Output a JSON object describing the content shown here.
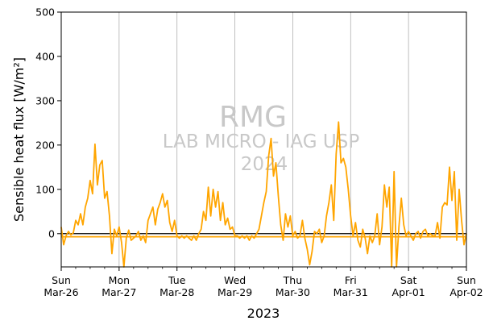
{
  "chart_data": {
    "type": "line",
    "title": "",
    "ylabel": "Sensible heat flux [W/m²]",
    "xlabel": "2023",
    "ylim": [
      -75,
      500
    ],
    "xlim": [
      "2023-03-26",
      "2023-04-02"
    ],
    "yticks": [
      0,
      100,
      200,
      300,
      400,
      500
    ],
    "xticks": [
      {
        "day": "Sun",
        "date": "Mar-26"
      },
      {
        "day": "Mon",
        "date": "Mar-27"
      },
      {
        "day": "Tue",
        "date": "Mar-28"
      },
      {
        "day": "Wed",
        "date": "Mar-29"
      },
      {
        "day": "Thu",
        "date": "Mar-30"
      },
      {
        "day": "Fri",
        "date": "Mar-31"
      },
      {
        "day": "Sat",
        "date": "Apr-01"
      },
      {
        "day": "Sun",
        "date": "Apr-02"
      }
    ],
    "grid": "vertical at day ticks",
    "reference_line": 0,
    "mean_line": -7,
    "series": [
      {
        "color": "#ffa500",
        "points": [
          [
            "2023-03-26 00:00",
            15
          ],
          [
            "2023-03-26 01:00",
            -25
          ],
          [
            "2023-03-26 02:00",
            -5
          ],
          [
            "2023-03-26 03:00",
            5
          ],
          [
            "2023-03-26 04:00",
            -3
          ],
          [
            "2023-03-26 05:00",
            2
          ],
          [
            "2023-03-26 06:00",
            30
          ],
          [
            "2023-03-26 07:00",
            20
          ],
          [
            "2023-03-26 08:00",
            45
          ],
          [
            "2023-03-26 09:00",
            20
          ],
          [
            "2023-03-26 10:00",
            60
          ],
          [
            "2023-03-26 11:00",
            80
          ],
          [
            "2023-03-26 12:00",
            120
          ],
          [
            "2023-03-26 13:00",
            90
          ],
          [
            "2023-03-26 14:00",
            202
          ],
          [
            "2023-03-26 15:00",
            110
          ],
          [
            "2023-03-26 16:00",
            155
          ],
          [
            "2023-03-26 17:00",
            165
          ],
          [
            "2023-03-26 18:00",
            80
          ],
          [
            "2023-03-26 19:00",
            95
          ],
          [
            "2023-03-26 20:00",
            40
          ],
          [
            "2023-03-26 21:00",
            -45
          ],
          [
            "2023-03-26 22:00",
            10
          ],
          [
            "2023-03-26 23:00",
            -5
          ],
          [
            "2023-03-27 00:00",
            15
          ],
          [
            "2023-03-27 01:00",
            -20
          ],
          [
            "2023-03-27 02:00",
            -75
          ],
          [
            "2023-03-27 03:00",
            -10
          ],
          [
            "2023-03-27 04:00",
            8
          ],
          [
            "2023-03-27 05:00",
            -15
          ],
          [
            "2023-03-27 06:00",
            -10
          ],
          [
            "2023-03-27 07:00",
            -5
          ],
          [
            "2023-03-27 08:00",
            5
          ],
          [
            "2023-03-27 09:00",
            -15
          ],
          [
            "2023-03-27 10:00",
            -5
          ],
          [
            "2023-03-27 11:00",
            -20
          ],
          [
            "2023-03-27 12:00",
            30
          ],
          [
            "2023-03-27 13:00",
            45
          ],
          [
            "2023-03-27 14:00",
            60
          ],
          [
            "2023-03-27 15:00",
            20
          ],
          [
            "2023-03-27 16:00",
            55
          ],
          [
            "2023-03-27 17:00",
            70
          ],
          [
            "2023-03-27 18:00",
            90
          ],
          [
            "2023-03-27 19:00",
            60
          ],
          [
            "2023-03-27 20:00",
            75
          ],
          [
            "2023-03-27 21:00",
            25
          ],
          [
            "2023-03-27 22:00",
            5
          ],
          [
            "2023-03-27 23:00",
            30
          ],
          [
            "2023-03-28 00:00",
            -5
          ],
          [
            "2023-03-28 01:00",
            -10
          ],
          [
            "2023-03-28 02:00",
            -5
          ],
          [
            "2023-03-28 03:00",
            -10
          ],
          [
            "2023-03-28 04:00",
            -5
          ],
          [
            "2023-03-28 05:00",
            -10
          ],
          [
            "2023-03-28 06:00",
            -15
          ],
          [
            "2023-03-28 07:00",
            -5
          ],
          [
            "2023-03-28 08:00",
            -15
          ],
          [
            "2023-03-28 09:00",
            0
          ],
          [
            "2023-03-28 10:00",
            10
          ],
          [
            "2023-03-28 11:00",
            50
          ],
          [
            "2023-03-28 12:00",
            30
          ],
          [
            "2023-03-28 13:00",
            105
          ],
          [
            "2023-03-28 14:00",
            40
          ],
          [
            "2023-03-28 15:00",
            100
          ],
          [
            "2023-03-28 16:00",
            60
          ],
          [
            "2023-03-28 17:00",
            95
          ],
          [
            "2023-03-28 18:00",
            30
          ],
          [
            "2023-03-28 19:00",
            70
          ],
          [
            "2023-03-28 20:00",
            20
          ],
          [
            "2023-03-28 21:00",
            35
          ],
          [
            "2023-03-28 22:00",
            10
          ],
          [
            "2023-03-28 23:00",
            15
          ],
          [
            "2023-03-29 00:00",
            -5
          ],
          [
            "2023-03-29 01:00",
            -5
          ],
          [
            "2023-03-29 02:00",
            -10
          ],
          [
            "2023-03-29 03:00",
            -5
          ],
          [
            "2023-03-29 04:00",
            -10
          ],
          [
            "2023-03-29 05:00",
            -5
          ],
          [
            "2023-03-29 06:00",
            -15
          ],
          [
            "2023-03-29 07:00",
            -5
          ],
          [
            "2023-03-29 08:00",
            -10
          ],
          [
            "2023-03-29 09:00",
            0
          ],
          [
            "2023-03-29 10:00",
            10
          ],
          [
            "2023-03-29 11:00",
            40
          ],
          [
            "2023-03-29 12:00",
            70
          ],
          [
            "2023-03-29 13:00",
            95
          ],
          [
            "2023-03-29 14:00",
            175
          ],
          [
            "2023-03-29 15:00",
            215
          ],
          [
            "2023-03-29 16:00",
            130
          ],
          [
            "2023-03-29 17:00",
            160
          ],
          [
            "2023-03-29 18:00",
            85
          ],
          [
            "2023-03-29 19:00",
            20
          ],
          [
            "2023-03-29 20:00",
            -15
          ],
          [
            "2023-03-29 21:00",
            45
          ],
          [
            "2023-03-29 22:00",
            15
          ],
          [
            "2023-03-29 23:00",
            40
          ],
          [
            "2023-03-30 00:00",
            -5
          ],
          [
            "2023-03-30 01:00",
            5
          ],
          [
            "2023-03-30 02:00",
            -10
          ],
          [
            "2023-03-30 03:00",
            -5
          ],
          [
            "2023-03-30 04:00",
            30
          ],
          [
            "2023-03-30 05:00",
            -10
          ],
          [
            "2023-03-30 06:00",
            -35
          ],
          [
            "2023-03-30 07:00",
            -70
          ],
          [
            "2023-03-30 08:00",
            -40
          ],
          [
            "2023-03-30 09:00",
            5
          ],
          [
            "2023-03-30 10:00",
            0
          ],
          [
            "2023-03-30 11:00",
            10
          ],
          [
            "2023-03-30 12:00",
            -20
          ],
          [
            "2023-03-30 13:00",
            -5
          ],
          [
            "2023-03-30 14:00",
            40
          ],
          [
            "2023-03-30 15:00",
            70
          ],
          [
            "2023-03-30 16:00",
            110
          ],
          [
            "2023-03-30 17:00",
            30
          ],
          [
            "2023-03-30 18:00",
            180
          ],
          [
            "2023-03-30 19:00",
            252
          ],
          [
            "2023-03-30 20:00",
            160
          ],
          [
            "2023-03-30 21:00",
            170
          ],
          [
            "2023-03-30 22:00",
            150
          ],
          [
            "2023-03-30 23:00",
            100
          ],
          [
            "2023-03-31 00:00",
            40
          ],
          [
            "2023-03-31 01:00",
            -5
          ],
          [
            "2023-03-31 02:00",
            25
          ],
          [
            "2023-03-31 03:00",
            -15
          ],
          [
            "2023-03-31 04:00",
            -30
          ],
          [
            "2023-03-31 05:00",
            10
          ],
          [
            "2023-03-31 06:00",
            -10
          ],
          [
            "2023-03-31 07:00",
            -45
          ],
          [
            "2023-03-31 08:00",
            -5
          ],
          [
            "2023-03-31 09:00",
            -20
          ],
          [
            "2023-03-31 10:00",
            -5
          ],
          [
            "2023-03-31 11:00",
            45
          ],
          [
            "2023-03-31 12:00",
            -25
          ],
          [
            "2023-03-31 13:00",
            15
          ],
          [
            "2023-03-31 14:00",
            110
          ],
          [
            "2023-03-31 15:00",
            60
          ],
          [
            "2023-03-31 16:00",
            105
          ],
          [
            "2023-03-31 17:00",
            -75
          ],
          [
            "2023-03-31 18:00",
            140
          ],
          [
            "2023-03-31 19:00",
            -75
          ],
          [
            "2023-03-31 20:00",
            15
          ],
          [
            "2023-03-31 21:00",
            80
          ],
          [
            "2023-03-31 22:00",
            20
          ],
          [
            "2023-03-31 23:00",
            -5
          ],
          [
            "2023-04-01 00:00",
            5
          ],
          [
            "2023-04-01 01:00",
            -5
          ],
          [
            "2023-04-01 02:00",
            -15
          ],
          [
            "2023-04-01 03:00",
            0
          ],
          [
            "2023-04-01 04:00",
            5
          ],
          [
            "2023-04-01 05:00",
            -10
          ],
          [
            "2023-04-01 06:00",
            5
          ],
          [
            "2023-04-01 07:00",
            10
          ],
          [
            "2023-04-01 08:00",
            -5
          ],
          [
            "2023-04-01 09:00",
            0
          ],
          [
            "2023-04-01 10:00",
            -5
          ],
          [
            "2023-04-01 11:00",
            -5
          ],
          [
            "2023-04-01 12:00",
            25
          ],
          [
            "2023-04-01 13:00",
            -10
          ],
          [
            "2023-04-01 14:00",
            60
          ],
          [
            "2023-04-01 15:00",
            70
          ],
          [
            "2023-04-01 16:00",
            65
          ],
          [
            "2023-04-01 17:00",
            150
          ],
          [
            "2023-04-01 18:00",
            75
          ],
          [
            "2023-04-01 19:00",
            140
          ],
          [
            "2023-04-01 20:00",
            -15
          ],
          [
            "2023-04-01 21:00",
            100
          ],
          [
            "2023-04-01 22:00",
            30
          ],
          [
            "2023-04-01 23:00",
            -25
          ],
          [
            "2023-04-02 00:00",
            0
          ]
        ]
      }
    ],
    "watermark": [
      "RMG",
      "LAB MICRO - IAG USP",
      "2024"
    ]
  }
}
